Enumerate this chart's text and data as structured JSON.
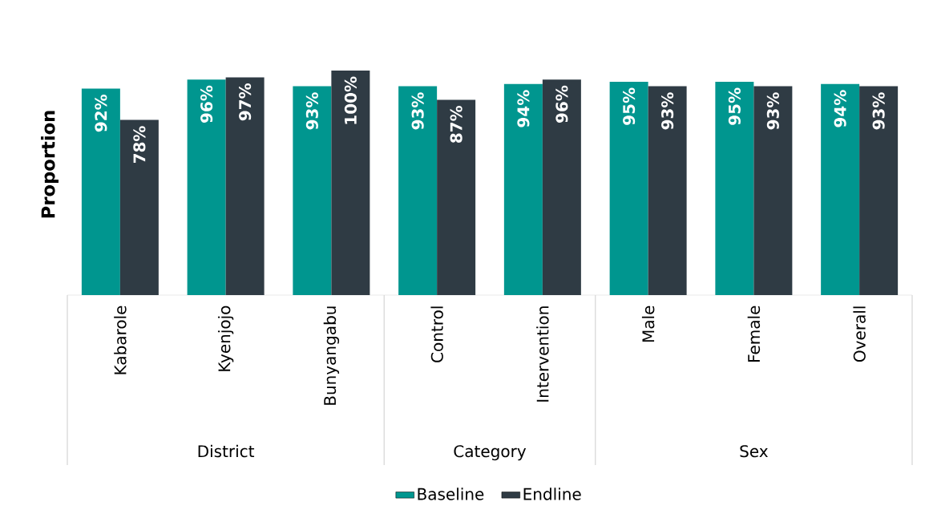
{
  "chart_data": {
    "type": "bar",
    "ylabel": "Proportion",
    "categories": [
      "Kabarole",
      "Kyenjojo",
      "Bunyangabu",
      "Control",
      "Intervention",
      "Male",
      "Female",
      "Overall"
    ],
    "series": [
      {
        "name": "Baseline",
        "color": "#00968f",
        "values": [
          92,
          96,
          93,
          93,
          94,
          95,
          95,
          94
        ],
        "value_labels": [
          "92%",
          "96%",
          "93%",
          "93%",
          "94%",
          "95%",
          "95%",
          "94%"
        ]
      },
      {
        "name": "Endline",
        "color": "#2f3b44",
        "values": [
          78,
          97,
          100,
          87,
          96,
          93,
          93,
          93
        ],
        "value_labels": [
          "78%",
          "97%",
          "100%",
          "87%",
          "96%",
          "93%",
          "93%",
          "93%"
        ]
      }
    ],
    "annotations": [
      "District",
      "Category",
      "Sex"
    ],
    "legend": "bottom"
  }
}
